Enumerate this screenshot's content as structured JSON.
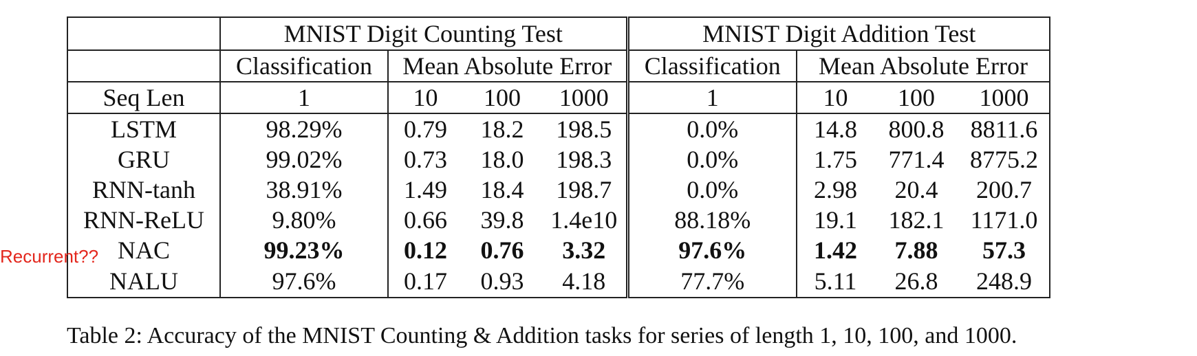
{
  "table": {
    "groups": [
      "MNIST Digit Counting Test",
      "MNIST Digit Addition Test"
    ],
    "subheaders": [
      "Classification",
      "Mean Absolute Error",
      "Classification",
      "Mean Absolute Error"
    ],
    "seq_label": "Seq Len",
    "seq_lengths": [
      "1",
      "10",
      "100",
      "1000",
      "1",
      "10",
      "100",
      "1000"
    ],
    "rows": [
      {
        "model": "LSTM",
        "cells": [
          "98.29%",
          "0.79",
          "18.2",
          "198.5",
          "0.0%",
          "14.8",
          "800.8",
          "8811.6"
        ]
      },
      {
        "model": "GRU",
        "cells": [
          "99.02%",
          "0.73",
          "18.0",
          "198.3",
          "0.0%",
          "1.75",
          "771.4",
          "8775.2"
        ]
      },
      {
        "model": "RNN-tanh",
        "cells": [
          "38.91%",
          "1.49",
          "18.4",
          "198.7",
          "0.0%",
          "2.98",
          "20.4",
          "200.7"
        ]
      },
      {
        "model": "RNN-ReLU",
        "cells": [
          "9.80%",
          "0.66",
          "39.8",
          "1.4e10",
          "88.18%",
          "19.1",
          "182.1",
          "1171.0"
        ]
      },
      {
        "model": "NAC",
        "cells": [
          "99.23%",
          "0.12",
          "0.76",
          "3.32",
          "97.6%",
          "1.42",
          "7.88",
          "57.3"
        ]
      },
      {
        "model": "NALU",
        "cells": [
          "97.6%",
          "0.17",
          "0.93",
          "4.18",
          "77.7%",
          "5.11",
          "26.8",
          "248.9"
        ]
      }
    ]
  },
  "annotation": "Recurrent??",
  "caption": "Table 2: Accuracy of the MNIST Counting & Addition tasks for series of length 1, 10, 100, and 1000."
}
